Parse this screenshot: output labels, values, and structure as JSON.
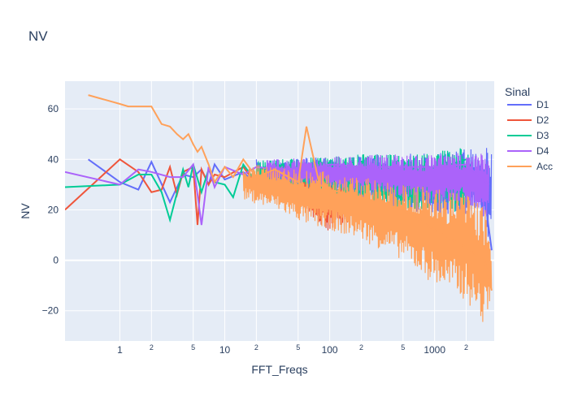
{
  "chart_data": {
    "type": "line",
    "title": "NV",
    "xlabel": "FFT_Freqs",
    "ylabel": "NV",
    "x_scale": "log",
    "xlim": [
      0.3,
      3700
    ],
    "ylim": [
      -32,
      71
    ],
    "y_ticks": [
      -20,
      0,
      20,
      40,
      60
    ],
    "x_major_ticks": [
      {
        "value": 1,
        "label": "1"
      },
      {
        "value": 10,
        "label": "10"
      },
      {
        "value": 100,
        "label": "100"
      },
      {
        "value": 1000,
        "label": "1000"
      }
    ],
    "x_minor_ticks": [
      {
        "value": 2,
        "label": "2"
      },
      {
        "value": 5,
        "label": "5"
      },
      {
        "value": 20,
        "label": "2"
      },
      {
        "value": 50,
        "label": "5"
      },
      {
        "value": 200,
        "label": "2"
      },
      {
        "value": 500,
        "label": "5"
      },
      {
        "value": 2000,
        "label": "2"
      }
    ],
    "legend": {
      "title": "Sinal",
      "placement": "right"
    },
    "series": [
      {
        "name": "D1",
        "color": "#636efa",
        "points": [
          [
            0.5,
            40
          ],
          [
            1,
            31
          ],
          [
            1.5,
            28
          ],
          [
            2,
            39
          ],
          [
            3,
            23
          ],
          [
            4,
            34
          ],
          [
            5,
            33
          ],
          [
            6,
            36
          ],
          [
            7,
            30
          ],
          [
            8,
            38
          ],
          [
            10,
            32
          ],
          [
            15,
            35
          ],
          [
            20,
            30
          ],
          [
            30,
            38
          ],
          [
            50,
            28
          ],
          [
            100,
            36
          ],
          [
            200,
            34
          ],
          [
            500,
            34
          ],
          [
            1000,
            34
          ],
          [
            2000,
            34
          ],
          [
            3000,
            25
          ],
          [
            3500,
            4
          ]
        ],
        "band": {
          "x": [
            [
              20,
              3500
            ]
          ],
          "low": [
            [
              20,
              28
            ],
            [
              100,
              26
            ],
            [
              500,
              20
            ],
            [
              1000,
              18
            ],
            [
              2000,
              18
            ],
            [
              2800,
              18
            ],
            [
              3500,
              4
            ]
          ],
          "high": [
            [
              20,
              40
            ],
            [
              100,
              41
            ],
            [
              500,
              42
            ],
            [
              1000,
              43
            ],
            [
              2000,
              44
            ],
            [
              3000,
              45
            ],
            [
              3500,
              45
            ]
          ]
        }
      },
      {
        "name": "D2",
        "color": "#ef553b",
        "points": [
          [
            0.3,
            20
          ],
          [
            1,
            40
          ],
          [
            1.5,
            35
          ],
          [
            2,
            27
          ],
          [
            2.5,
            28
          ],
          [
            3,
            37
          ],
          [
            3.5,
            26
          ],
          [
            4,
            35
          ],
          [
            5,
            37
          ],
          [
            5.5,
            14
          ],
          [
            6,
            36
          ],
          [
            7,
            30
          ],
          [
            8,
            34
          ],
          [
            10,
            33
          ],
          [
            15,
            37
          ],
          [
            20,
            30
          ],
          [
            30,
            36
          ],
          [
            50,
            25
          ],
          [
            70,
            20
          ],
          [
            100,
            28
          ],
          [
            150,
            18
          ]
        ],
        "band": {
          "x": [
            [
              30,
              150
            ]
          ],
          "low": [
            [
              30,
              28
            ],
            [
              60,
              20
            ],
            [
              80,
              10
            ],
            [
              150,
              15
            ]
          ],
          "high": [
            [
              30,
              38
            ],
            [
              60,
              38
            ],
            [
              80,
              35
            ],
            [
              150,
              34
            ]
          ]
        }
      },
      {
        "name": "D3",
        "color": "#00cc96",
        "points": [
          [
            0.3,
            29
          ],
          [
            1,
            30
          ],
          [
            1.5,
            34
          ],
          [
            2,
            34
          ],
          [
            2.5,
            27
          ],
          [
            3,
            16
          ],
          [
            4,
            36
          ],
          [
            4.5,
            29
          ],
          [
            5,
            38
          ],
          [
            6,
            27
          ],
          [
            7,
            36
          ],
          [
            8,
            31
          ],
          [
            10,
            30
          ],
          [
            12,
            25
          ],
          [
            15,
            38
          ],
          [
            20,
            31
          ],
          [
            30,
            38
          ],
          [
            50,
            30
          ],
          [
            100,
            37
          ],
          [
            200,
            36
          ],
          [
            500,
            36
          ],
          [
            1000,
            36
          ],
          [
            2000,
            40
          ]
        ],
        "band": {
          "x": [
            [
              20,
              2200
            ]
          ],
          "low": [
            [
              20,
              28
            ],
            [
              100,
              26
            ],
            [
              200,
              22
            ],
            [
              500,
              20
            ],
            [
              1000,
              20
            ],
            [
              2200,
              18
            ]
          ],
          "high": [
            [
              20,
              40
            ],
            [
              100,
              41
            ],
            [
              200,
              42
            ],
            [
              500,
              42
            ],
            [
              1000,
              43
            ],
            [
              2200,
              45
            ]
          ]
        }
      },
      {
        "name": "D4",
        "color": "#ab63fa",
        "points": [
          [
            0.3,
            35
          ],
          [
            1,
            30
          ],
          [
            1.5,
            36
          ],
          [
            2,
            35
          ],
          [
            3,
            33
          ],
          [
            4,
            33
          ],
          [
            5,
            38
          ],
          [
            5.5,
            26
          ],
          [
            6,
            14
          ],
          [
            7,
            37
          ],
          [
            8,
            29
          ],
          [
            10,
            37
          ],
          [
            15,
            34
          ],
          [
            20,
            37
          ],
          [
            30,
            36
          ],
          [
            50,
            35
          ],
          [
            100,
            38
          ],
          [
            200,
            37
          ],
          [
            500,
            37
          ],
          [
            1000,
            37
          ],
          [
            2000,
            38
          ],
          [
            3300,
            30
          ]
        ],
        "band": {
          "x": [
            [
              25,
              3300
            ]
          ],
          "low": [
            [
              25,
              30
            ],
            [
              100,
              28
            ],
            [
              300,
              25
            ],
            [
              1000,
              22
            ],
            [
              2000,
              22
            ],
            [
              3300,
              16
            ]
          ],
          "high": [
            [
              25,
              40
            ],
            [
              100,
              41
            ],
            [
              300,
              42
            ],
            [
              1000,
              42
            ],
            [
              2000,
              43
            ],
            [
              3300,
              42
            ]
          ]
        }
      },
      {
        "name": "Acc",
        "color": "#ffa15a",
        "points": [
          [
            0.5,
            65.5
          ],
          [
            1,
            62
          ],
          [
            1.2,
            61
          ],
          [
            1.5,
            61
          ],
          [
            2,
            61
          ],
          [
            2.5,
            54
          ],
          [
            3,
            53
          ],
          [
            3.5,
            50
          ],
          [
            4,
            48
          ],
          [
            4.5,
            50
          ],
          [
            5,
            46
          ],
          [
            5.5,
            43
          ],
          [
            6,
            45
          ],
          [
            7,
            38
          ],
          [
            8,
            31
          ],
          [
            10,
            37
          ],
          [
            12,
            33
          ],
          [
            15,
            40
          ],
          [
            20,
            33
          ],
          [
            30,
            36
          ],
          [
            50,
            31
          ],
          [
            60,
            53
          ],
          [
            80,
            30
          ],
          [
            100,
            28
          ],
          [
            200,
            25
          ],
          [
            500,
            20
          ],
          [
            1000,
            12
          ],
          [
            2000,
            5
          ],
          [
            3000,
            0
          ],
          [
            3500,
            -12
          ]
        ],
        "band": {
          "x": [
            [
              15,
              3500
            ]
          ],
          "low": [
            [
              15,
              24
            ],
            [
              30,
              20
            ],
            [
              60,
              14
            ],
            [
              100,
              12
            ],
            [
              200,
              8
            ],
            [
              500,
              0
            ],
            [
              1000,
              -10
            ],
            [
              2000,
              -16
            ],
            [
              3000,
              -27
            ],
            [
              3500,
              -12
            ]
          ],
          "high": [
            [
              15,
              38
            ],
            [
              30,
              38
            ],
            [
              60,
              36
            ],
            [
              100,
              35
            ],
            [
              200,
              33
            ],
            [
              500,
              30
            ],
            [
              1000,
              29
            ],
            [
              2000,
              27
            ],
            [
              3000,
              22
            ],
            [
              3500,
              0
            ]
          ]
        }
      }
    ]
  }
}
